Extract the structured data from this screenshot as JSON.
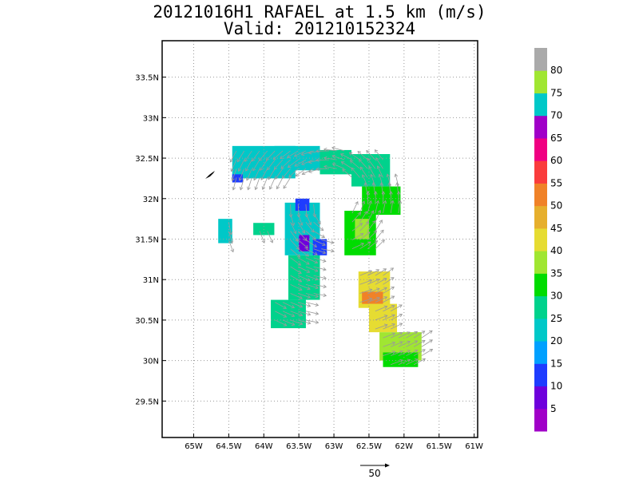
{
  "title": {
    "line1": "20121016H1 RAFAEL at 1.5 km (m/s)",
    "line2": "Valid: 201210152324"
  },
  "map": {
    "lon_range": [
      -65.45,
      -60.95
    ],
    "lat_range": [
      29.05,
      33.95
    ],
    "x_ticks": [
      {
        "value": -65.0,
        "label": "65W"
      },
      {
        "value": -64.5,
        "label": "64.5W"
      },
      {
        "value": -64.0,
        "label": "64W"
      },
      {
        "value": -63.5,
        "label": "63.5W"
      },
      {
        "value": -63.0,
        "label": "63W"
      },
      {
        "value": -62.5,
        "label": "62.5W"
      },
      {
        "value": -62.0,
        "label": "62W"
      },
      {
        "value": -61.5,
        "label": "61.5W"
      },
      {
        "value": -61.0,
        "label": "61W"
      }
    ],
    "y_ticks": [
      {
        "value": 29.5,
        "label": "29.5N"
      },
      {
        "value": 30.0,
        "label": "30N"
      },
      {
        "value": 30.5,
        "label": "30.5N"
      },
      {
        "value": 31.0,
        "label": "31N"
      },
      {
        "value": 31.5,
        "label": "31.5N"
      },
      {
        "value": 32.0,
        "label": "32N"
      },
      {
        "value": 32.5,
        "label": "32.5N"
      },
      {
        "value": 33.0,
        "label": "33N"
      },
      {
        "value": 33.5,
        "label": "33.5N"
      }
    ],
    "grid": true
  },
  "colorbar": {
    "colors": [
      "#a000c8",
      "#6e00dc",
      "#1e3cff",
      "#00a0ff",
      "#00c8c8",
      "#00d28c",
      "#00dc00",
      "#a0e632",
      "#e6dc32",
      "#e6af2d",
      "#f08228",
      "#fa3c3c",
      "#f00082",
      "#a000c8",
      "#00c8c8",
      "#a0e632",
      "#aaaaaa"
    ],
    "labels": [
      "5",
      "10",
      "15",
      "20",
      "25",
      "30",
      "35",
      "40",
      "45",
      "50",
      "55",
      "60",
      "65",
      "70",
      "75",
      "80"
    ]
  },
  "reference_vector": {
    "label": "50"
  },
  "chart_data": {
    "type": "heatmap",
    "title": "20121016H1 RAFAEL at 1.5 km (m/s)",
    "subtitle": "Valid: 201210152324",
    "xlim": [
      -65.45,
      -60.95
    ],
    "ylim": [
      29.05,
      33.95
    ],
    "regions": [
      {
        "lon": [
          -64.45,
          -63.55
        ],
        "lat": [
          32.25,
          32.65
        ],
        "speed": 22
      },
      {
        "lon": [
          -63.85,
          -63.2
        ],
        "lat": [
          32.35,
          32.65
        ],
        "speed": 24
      },
      {
        "lon": [
          -63.2,
          -62.75
        ],
        "lat": [
          32.3,
          32.6
        ],
        "speed": 26
      },
      {
        "lon": [
          -62.75,
          -62.2
        ],
        "lat": [
          32.15,
          32.55
        ],
        "speed": 28
      },
      {
        "lon": [
          -62.6,
          -62.05
        ],
        "lat": [
          31.8,
          32.15
        ],
        "speed": 33
      },
      {
        "lon": [
          -62.85,
          -62.4
        ],
        "lat": [
          31.3,
          31.85
        ],
        "speed": 32
      },
      {
        "lon": [
          -62.7,
          -62.5
        ],
        "lat": [
          31.5,
          31.75
        ],
        "speed": 38
      },
      {
        "lon": [
          -63.7,
          -63.2
        ],
        "lat": [
          31.3,
          31.95
        ],
        "speed": 24
      },
      {
        "lon": [
          -63.65,
          -63.2
        ],
        "lat": [
          30.75,
          31.3
        ],
        "speed": 26
      },
      {
        "lon": [
          -63.9,
          -63.4
        ],
        "lat": [
          30.4,
          30.75
        ],
        "speed": 27
      },
      {
        "lon": [
          -64.15,
          -63.85
        ],
        "lat": [
          31.55,
          31.7
        ],
        "speed": 25
      },
      {
        "lon": [
          -64.65,
          -64.45
        ],
        "lat": [
          31.45,
          31.75
        ],
        "speed": 23
      },
      {
        "lon": [
          -62.65,
          -62.2
        ],
        "lat": [
          30.65,
          31.1
        ],
        "speed": 43
      },
      {
        "lon": [
          -62.6,
          -62.3
        ],
        "lat": [
          30.7,
          30.85
        ],
        "speed": 50
      },
      {
        "lon": [
          -62.5,
          -62.1
        ],
        "lat": [
          30.35,
          30.7
        ],
        "speed": 40
      },
      {
        "lon": [
          -62.35,
          -61.75
        ],
        "lat": [
          30.0,
          30.35
        ],
        "speed": 38
      },
      {
        "lon": [
          -62.3,
          -61.8
        ],
        "lat": [
          29.92,
          30.1
        ],
        "speed": 34
      },
      {
        "lon": [
          -63.3,
          -63.1
        ],
        "lat": [
          31.3,
          31.5
        ],
        "speed": 14
      },
      {
        "lon": [
          -63.5,
          -63.35
        ],
        "lat": [
          31.35,
          31.55
        ],
        "speed": 9
      },
      {
        "lon": [
          -63.55,
          -63.35
        ],
        "lat": [
          31.85,
          32.0
        ],
        "speed": 13
      },
      {
        "lon": [
          -64.45,
          -64.3
        ],
        "lat": [
          32.2,
          32.3
        ],
        "speed": 14
      }
    ]
  }
}
